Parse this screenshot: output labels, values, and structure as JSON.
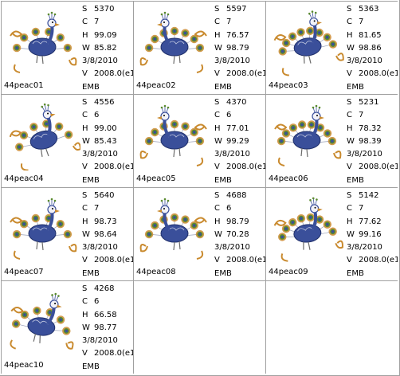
{
  "colors": {
    "grid_line": "#a0a0a0",
    "peacock_blue": "#3a4f9a",
    "accent_gold": "#c98a2e",
    "accent_green": "#5a8a2e"
  },
  "designs": [
    {
      "file": "44peac01",
      "S": "5370",
      "C": "7",
      "H": "99.09",
      "W": "85.82",
      "date": "3/8/2010",
      "V": "2008.0(e1",
      "type": "EMB",
      "icon": "peacock-embroidery"
    },
    {
      "file": "44peac02",
      "S": "5597",
      "C": "7",
      "H": "76.57",
      "W": "98.79",
      "date": "3/8/2010",
      "V": "2008.0(e1",
      "type": "EMB",
      "icon": "peacock-embroidery"
    },
    {
      "file": "44peac03",
      "S": "5363",
      "C": "7",
      "H": "81.65",
      "W": "98.86",
      "date": "3/8/2010",
      "V": "2008.0(e1",
      "type": "EMB",
      "icon": "peacock-embroidery"
    },
    {
      "file": "44peac04",
      "S": "4556",
      "C": "6",
      "H": "99.00",
      "W": "85.43",
      "date": "3/8/2010",
      "V": "2008.0(e1",
      "type": "EMB",
      "icon": "peacock-embroidery"
    },
    {
      "file": "44peac05",
      "S": "4370",
      "C": "6",
      "H": "77.01",
      "W": "99.29",
      "date": "3/8/2010",
      "V": "2008.0(e1",
      "type": "EMB",
      "icon": "peacock-embroidery"
    },
    {
      "file": "44peac06",
      "S": "5231",
      "C": "7",
      "H": "78.32",
      "W": "98.39",
      "date": "3/8/2010",
      "V": "2008.0(e1",
      "type": "EMB",
      "icon": "peacock-embroidery"
    },
    {
      "file": "44peac07",
      "S": "5640",
      "C": "7",
      "H": "98.73",
      "W": "98.64",
      "date": "3/8/2010",
      "V": "2008.0(e1",
      "type": "EMB",
      "icon": "peacock-embroidery"
    },
    {
      "file": "44peac08",
      "S": "4688",
      "C": "6",
      "H": "98.79",
      "W": "70.28",
      "date": "3/8/2010",
      "V": "2008.0(e1",
      "type": "EMB",
      "icon": "peacock-embroidery"
    },
    {
      "file": "44peac09",
      "S": "5142",
      "C": "7",
      "H": "77.62",
      "W": "99.16",
      "date": "3/8/2010",
      "V": "2008.0(e1",
      "type": "EMB",
      "icon": "peacock-embroidery"
    },
    {
      "file": "44peac10",
      "S": "4268",
      "C": "6",
      "H": "66.58",
      "W": "98.77",
      "date": "3/8/2010",
      "V": "2008.0(e1",
      "type": "EMB",
      "icon": "peacock-embroidery"
    }
  ],
  "labels": {
    "S": "S",
    "C": "C",
    "H": "H",
    "W": "W",
    "V": "V"
  }
}
